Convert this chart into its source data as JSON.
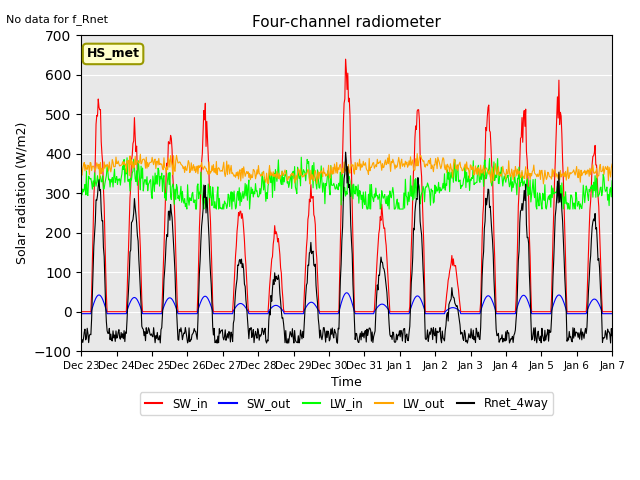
{
  "title": "Four-channel radiometer",
  "top_left_text": "No data for f_Rnet",
  "annotation_text": "HS_met",
  "ylabel": "Solar radiation (W/m2)",
  "xlabel": "Time",
  "ylim": [
    -100,
    700
  ],
  "background_color": "#e8e8e8",
  "legend": [
    {
      "label": "SW_in",
      "color": "red"
    },
    {
      "label": "SW_out",
      "color": "blue"
    },
    {
      "label": "LW_in",
      "color": "lime"
    },
    {
      "label": "LW_out",
      "color": "orange"
    },
    {
      "label": "Rnet_4way",
      "color": "black"
    }
  ],
  "xtick_labels": [
    "Dec 23",
    "Dec 24",
    "Dec 25",
    "Dec 26",
    "Dec 27",
    "Dec 28",
    "Dec 29",
    "Dec 30",
    "Dec 31",
    "Jan 1",
    "Jan 2",
    "Jan 3",
    "Jan 4",
    "Jan 5",
    "Jan 6",
    "Jan 7"
  ],
  "n_days": 15,
  "seed": 42,
  "sw_in_peaks": [
    530,
    450,
    440,
    490,
    260,
    200,
    300,
    600,
    240,
    500,
    130,
    505,
    520,
    530,
    400
  ]
}
